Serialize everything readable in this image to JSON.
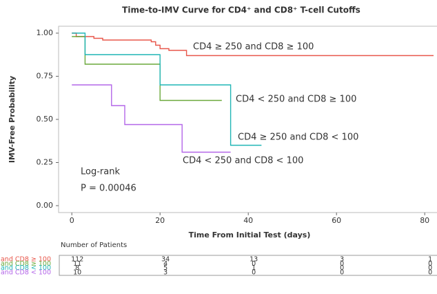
{
  "chart_data": {
    "type": "step",
    "title": "Time-to-IMV Curve for CD4⁺ and CD8⁺ T-cell Cutoffs",
    "x_label": "Time From Initial Test (days)",
    "y_label": "IMV-Free Probability",
    "xlim": [
      -3,
      82
    ],
    "ylim": [
      -0.04,
      1.04
    ],
    "xticks": [
      0,
      20,
      40,
      60,
      80
    ],
    "yticks": [
      {
        "value": 0,
        "label": "0.00"
      },
      {
        "value": 0.25,
        "label": "0.25"
      },
      {
        "value": 0.5,
        "label": "0.50"
      },
      {
        "value": 0.75,
        "label": "0.75"
      },
      {
        "value": 1,
        "label": "1.00"
      }
    ],
    "series": [
      {
        "name": "CD4 ≥ 250 and CD8 ≥ 100",
        "color": "#e8564a",
        "x": [
          0,
          1,
          5,
          7,
          18,
          19,
          20,
          22,
          26,
          82
        ],
        "values": [
          1,
          0.98,
          0.97,
          0.96,
          0.95,
          0.93,
          0.91,
          0.9,
          0.87,
          0.87
        ]
      },
      {
        "name": "CD4 < 250 and CD8 ≥ 100",
        "color": "#6aa83a",
        "x": [
          0,
          3,
          20,
          34
        ],
        "values": [
          0.98,
          0.82,
          0.61,
          0.61
        ]
      },
      {
        "name": "CD4 ≥ 250 and CD8 < 100",
        "color": "#1fb5b5",
        "x": [
          0,
          3,
          20,
          36,
          43
        ],
        "values": [
          1,
          0.875,
          0.7,
          0.35,
          0.35
        ]
      },
      {
        "name": "CD4 < 250 and CD8 < 100",
        "color": "#b366e8",
        "x": [
          0,
          9,
          12,
          25,
          36
        ],
        "values": [
          0.7,
          0.58,
          0.47,
          0.31,
          0.31
        ]
      }
    ],
    "annotations": [
      "Log-rank",
      "P = 0.00046"
    ],
    "risk_table": {
      "title": "Number of Patients",
      "rows": [
        [
          112,
          34,
          13,
          3,
          1
        ],
        [
          11,
          4,
          0,
          0,
          0
        ],
        [
          8,
          5,
          1,
          0,
          0
        ],
        [
          10,
          3,
          0,
          0,
          0
        ]
      ]
    }
  }
}
